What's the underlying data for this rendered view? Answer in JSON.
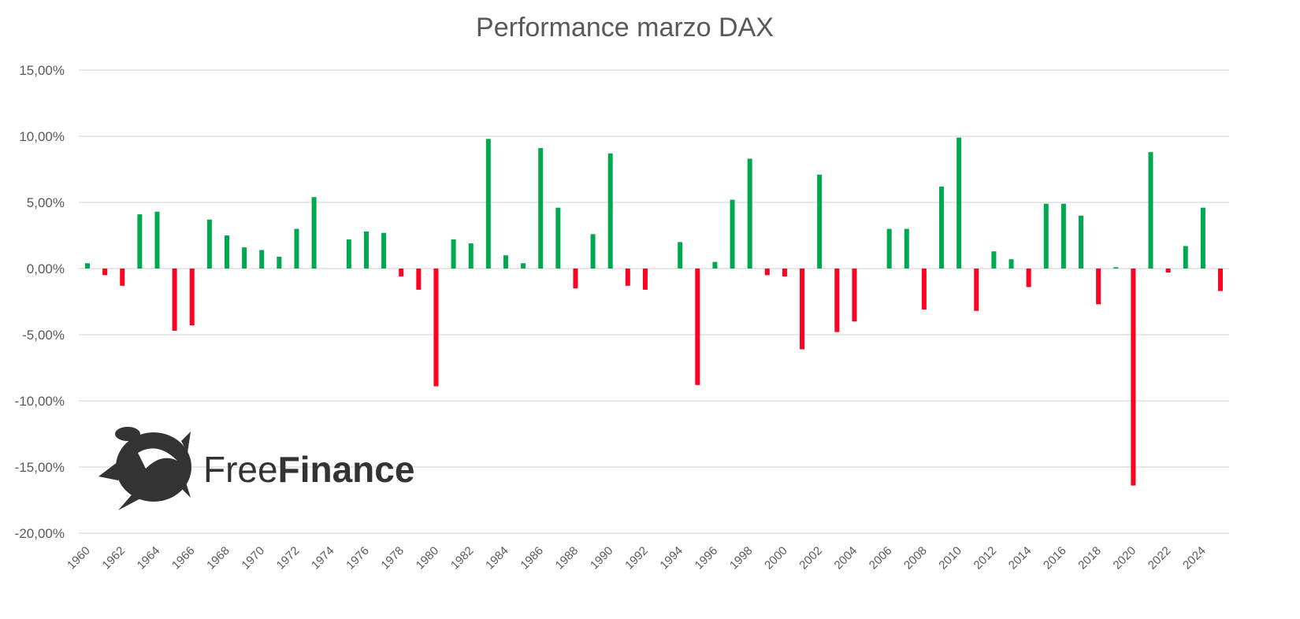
{
  "chart_data": {
    "type": "bar",
    "title": "Performance marzo DAX",
    "xlabel": "",
    "ylabel": "",
    "ylim": [
      -20,
      15
    ],
    "yticks": [
      15,
      10,
      5,
      0,
      -5,
      -10,
      -15,
      -20
    ],
    "ytick_labels": [
      "15,00%",
      "10,00%",
      "5,00%",
      "0,00%",
      "-5,00%",
      "-10,00%",
      "-15,00%",
      "-20,00%"
    ],
    "grid": true,
    "legend": "none",
    "positive_color": "#00A84F",
    "negative_color": "#FF0021",
    "categories": [
      1960,
      1961,
      1962,
      1963,
      1964,
      1965,
      1966,
      1967,
      1968,
      1969,
      1970,
      1971,
      1972,
      1973,
      1974,
      1975,
      1976,
      1977,
      1978,
      1979,
      1980,
      1981,
      1982,
      1983,
      1984,
      1985,
      1986,
      1987,
      1988,
      1989,
      1990,
      1991,
      1992,
      1993,
      1994,
      1995,
      1996,
      1997,
      1998,
      1999,
      2000,
      2001,
      2002,
      2003,
      2004,
      2005,
      2006,
      2007,
      2008,
      2009,
      2010,
      2011,
      2012,
      2013,
      2014,
      2015,
      2016,
      2017,
      2018,
      2019,
      2020,
      2021,
      2022,
      2023,
      2024,
      2025
    ],
    "values": [
      0.4,
      -0.5,
      -1.3,
      4.1,
      4.3,
      -4.7,
      -4.3,
      3.7,
      2.5,
      1.6,
      1.4,
      0.9,
      3.0,
      5.4,
      0,
      2.2,
      2.8,
      2.7,
      -0.6,
      -1.6,
      -8.9,
      2.2,
      1.9,
      9.8,
      1.0,
      0.4,
      9.1,
      4.6,
      -1.5,
      2.6,
      8.7,
      -1.3,
      -1.6,
      0,
      2.0,
      -8.8,
      0.5,
      5.2,
      8.3,
      -0.5,
      -0.6,
      -6.1,
      7.1,
      -4.8,
      -4.0,
      0,
      3.0,
      3.0,
      -3.1,
      6.2,
      9.9,
      -3.2,
      1.3,
      0.7,
      -1.4,
      4.9,
      4.9,
      4.0,
      -2.7,
      0.1,
      -16.4,
      8.8,
      -0.3,
      1.7,
      4.6,
      -1.7
    ],
    "xtick_labels": [
      "1960",
      "1962",
      "1964",
      "1966",
      "1968",
      "1970",
      "1972",
      "1974",
      "1976",
      "1978",
      "1980",
      "1982",
      "1984",
      "1986",
      "1988",
      "1990",
      "1992",
      "1994",
      "1996",
      "1998",
      "2000",
      "2002",
      "2004",
      "2006",
      "2008",
      "2010",
      "2012",
      "2014",
      "2016",
      "2018",
      "2020",
      "2022",
      "2024"
    ]
  },
  "logo": {
    "text_light": "Free",
    "text_bold": "Finance"
  }
}
